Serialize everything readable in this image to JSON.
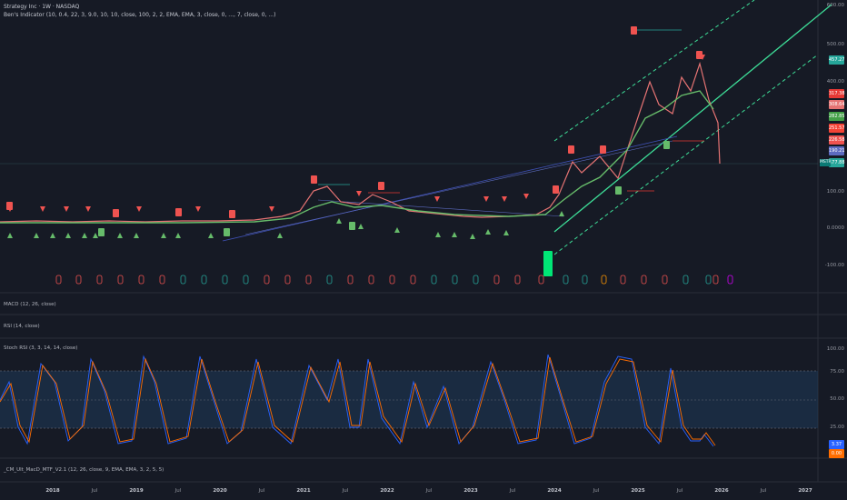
{
  "legend": {
    "symbol_line": "Strategy Inc · 1W · NASDAQ",
    "indicator_line": "Ben's Indicator (10, 0.4, 22, 3, 9.0, 10, 10, close, 100, 2, 2, EMA, EMA, 3, close, 0, ..., 7, close, 0, ...)"
  },
  "price_axis": {
    "labels": [
      "600.00",
      "500.00",
      "400.00",
      "100.00",
      "0.0000",
      "-100.00"
    ],
    "tags": [
      {
        "text": "457.27",
        "color": "#26a69a"
      },
      {
        "text": "317.38",
        "color": "#e53935"
      },
      {
        "text": "308.64",
        "color": "#e57373"
      },
      {
        "text": "282.85",
        "color": "#43a047"
      },
      {
        "text": "251.57",
        "color": "#f44336"
      },
      {
        "text": "226.58",
        "color": "#ef5350"
      },
      {
        "text": "190.21",
        "color": "#5c6bc0"
      },
      {
        "text": "177.88",
        "color": "#26a69a"
      }
    ],
    "last_symbol": "MSTR"
  },
  "panes": {
    "macd_title": "MACD (12, 26, close)",
    "rsi_title": "RSI (14, close)",
    "stoch_title": "Stoch RSI (3, 3, 14, 14, close)",
    "stoch_labels": [
      "100.00",
      "75.00",
      "50.00",
      "25.00"
    ],
    "stoch_tags": [
      {
        "text": "3.37",
        "color": "#2962ff"
      },
      {
        "text": "0.00",
        "color": "#ff6d00"
      }
    ],
    "cm_title": "_CM_Ult_MacD_MTF_V2.1 (12, 26, close, 9, EMA, EMA, 3, 2, 5, 5)"
  },
  "time_axis": [
    {
      "text": "2018",
      "year": true
    },
    {
      "text": "Jul",
      "year": false
    },
    {
      "text": "2019",
      "year": true
    },
    {
      "text": "Jul",
      "year": false
    },
    {
      "text": "2020",
      "year": true
    },
    {
      "text": "Jul",
      "year": false
    },
    {
      "text": "2021",
      "year": true
    },
    {
      "text": "Jul",
      "year": false
    },
    {
      "text": "2022",
      "year": true
    },
    {
      "text": "Jul",
      "year": false
    },
    {
      "text": "2023",
      "year": true
    },
    {
      "text": "Jul",
      "year": false
    },
    {
      "text": "2024",
      "year": true
    },
    {
      "text": "Jul",
      "year": false
    },
    {
      "text": "2025",
      "year": true
    },
    {
      "text": "Jul",
      "year": false
    },
    {
      "text": "2026",
      "year": true
    },
    {
      "text": "Jul",
      "year": false
    },
    {
      "text": "2027",
      "year": true
    }
  ],
  "colors": {
    "background": "#161a25",
    "up": "#26a69a",
    "down": "#ef5350",
    "band": "#1f3a5a",
    "channel": "#3ddc97"
  }
}
